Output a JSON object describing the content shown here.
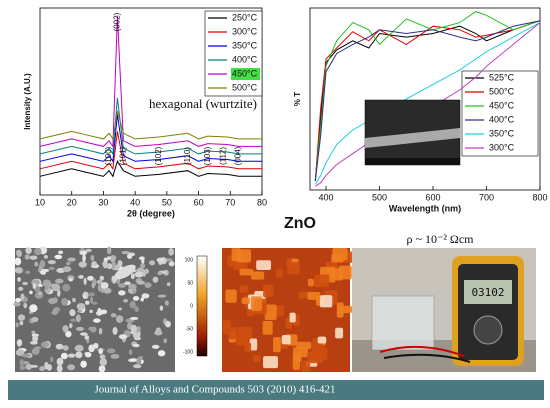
{
  "chart_data": [
    {
      "type": "line",
      "ylabel": "Intensity (A.U.)",
      "xlabel": "2θ (degree)",
      "xlim": [
        10,
        80
      ],
      "xticks": [
        10,
        20,
        30,
        40,
        50,
        60,
        70,
        80
      ],
      "ylim": [
        0,
        100
      ],
      "x": [
        10,
        20,
        25,
        30,
        31.8,
        33,
        34.4,
        36.3,
        40,
        47.5,
        56.6,
        60,
        62.9,
        69.1,
        72.6,
        80
      ],
      "series": [
        {
          "name": "250°C",
          "color": "#000000",
          "values": [
            10,
            14,
            12,
            10,
            13,
            10,
            18,
            13,
            10,
            11,
            13,
            10,
            11.5,
            11,
            10,
            10
          ]
        },
        {
          "name": "300°C",
          "color": "#e00000",
          "values": [
            14,
            18,
            16,
            14,
            17,
            14,
            34,
            17,
            14,
            15,
            17,
            14,
            15.5,
            15,
            14,
            14
          ]
        },
        {
          "name": "350°C",
          "color": "#0000e0",
          "values": [
            18,
            22,
            20,
            18,
            21,
            18,
            43,
            21,
            18,
            19,
            21,
            18,
            19.5,
            19,
            18,
            18
          ]
        },
        {
          "name": "400°C",
          "color": "#008080",
          "values": [
            22,
            26,
            24,
            22,
            25,
            22,
            52,
            25,
            22,
            23,
            25,
            22,
            23.5,
            23,
            22,
            22
          ]
        },
        {
          "name": "450°C",
          "color": "#c000c0",
          "highlight": true,
          "values": [
            26,
            30,
            28,
            26,
            29,
            26,
            96,
            29,
            26,
            27,
            29,
            26,
            27.5,
            27,
            26,
            26
          ]
        },
        {
          "name": "500°C",
          "color": "#808000",
          "values": [
            30,
            34,
            32,
            30,
            33,
            30,
            45,
            33,
            30,
            31,
            33,
            30,
            31.5,
            31,
            30,
            30
          ]
        }
      ],
      "annotations": [
        {
          "text": "(100)",
          "x": 31.8
        },
        {
          "text": "(002)",
          "x": 34.4
        },
        {
          "text": "(101)",
          "x": 36.3
        },
        {
          "text": "(102)",
          "x": 47.5
        },
        {
          "text": "(110)",
          "x": 56.6
        },
        {
          "text": "(103)",
          "x": 62.9
        },
        {
          "text": "(112)",
          "x": 67.9
        },
        {
          "text": "(004)",
          "x": 72.6
        }
      ],
      "note": "hexagonal (wurtzite)"
    },
    {
      "type": "line",
      "ylabel": "% T",
      "xlabel": "Wavelength (nm)",
      "xlim": [
        370,
        800
      ],
      "xticks": [
        400,
        500,
        600,
        700,
        800
      ],
      "ylim": [
        0,
        100
      ],
      "x": [
        380,
        390,
        400,
        420,
        450,
        480,
        500,
        550,
        600,
        650,
        680,
        700,
        750,
        800
      ],
      "series": [
        {
          "name": "525°C",
          "color": "#000000",
          "values": [
            5,
            40,
            70,
            77,
            82,
            78,
            86,
            84,
            86,
            90,
            86,
            82,
            88,
            93
          ]
        },
        {
          "name": "500°C",
          "color": "#e00000",
          "values": [
            5,
            45,
            72,
            78,
            87,
            82,
            88,
            80,
            90,
            88,
            84,
            85,
            88,
            93
          ]
        },
        {
          "name": "450°C",
          "color": "#20c020",
          "values": [
            5,
            35,
            68,
            82,
            92,
            88,
            80,
            94,
            88,
            92,
            98,
            96,
            88,
            93
          ]
        },
        {
          "name": "400°C",
          "color": "#303080",
          "values": [
            5,
            30,
            65,
            75,
            80,
            84,
            88,
            86,
            88,
            84,
            82,
            84,
            90,
            93
          ]
        },
        {
          "name": "350°C",
          "color": "#20d0e0",
          "values": [
            3,
            8,
            15,
            25,
            33,
            38,
            42,
            50,
            58,
            66,
            72,
            76,
            84,
            92
          ]
        },
        {
          "name": "300°C",
          "color": "#c040c0",
          "values": [
            2,
            4,
            8,
            14,
            20,
            26,
            30,
            38,
            46,
            55,
            62,
            68,
            80,
            92
          ]
        }
      ]
    }
  ],
  "title": "ZnO",
  "resistivity": "ρ ~ 10⁻² Ωcm",
  "meter_reading": "03102",
  "afm_scale": [
    "100",
    "50",
    "0",
    "-50",
    "-100"
  ],
  "footer": "Journal of Alloys and Compounds 503 (2010)  416-421"
}
